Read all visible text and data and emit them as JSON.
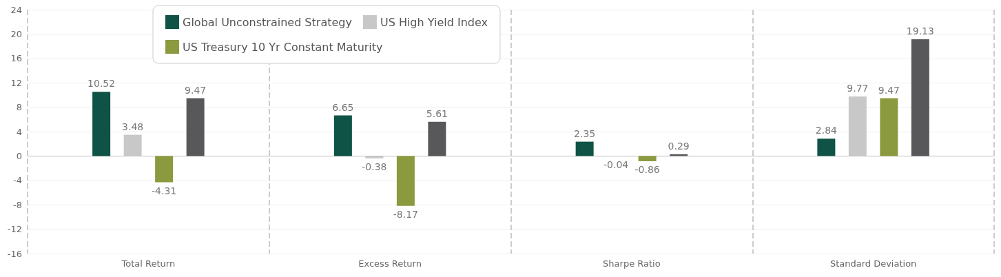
{
  "chart_data": {
    "type": "bar",
    "categories": [
      "Total Return",
      "Excess Return",
      "Sharpe Ratio",
      "Standard Deviation"
    ],
    "series": [
      {
        "name": "Global Unconstrained Strategy",
        "color": "#0e5345",
        "values": [
          10.52,
          6.65,
          2.35,
          2.84
        ]
      },
      {
        "name": "US High Yield Index",
        "color": "#c8c8c8",
        "values": [
          3.48,
          -0.38,
          -0.04,
          9.77
        ]
      },
      {
        "name": "US Treasury 10 Yr Constant Maturity",
        "color": "#8c9a3f",
        "values": [
          -4.31,
          -8.17,
          -0.86,
          9.47
        ]
      },
      {
        "color": "#58585a",
        "values": [
          9.47,
          5.61,
          0.29,
          19.13
        ]
      }
    ],
    "ylim": [
      -16,
      24
    ],
    "yticks": [
      -16,
      -12,
      -8,
      -4,
      0,
      4,
      8,
      12,
      16,
      20,
      24
    ],
    "grid": true,
    "legend": "top left",
    "data_labels": true
  }
}
